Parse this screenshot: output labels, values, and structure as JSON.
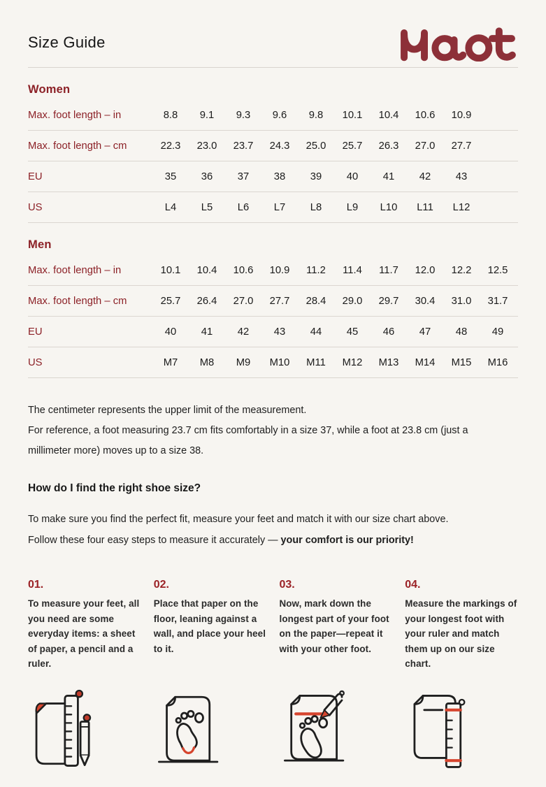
{
  "header": {
    "title": "Size Guide",
    "brand": "Naot"
  },
  "tables": [
    {
      "section": "Women",
      "rows": [
        {
          "label": "Max. foot length – in",
          "values": [
            "8.8",
            "9.1",
            "9.3",
            "9.6",
            "9.8",
            "10.1",
            "10.4",
            "10.6",
            "10.9"
          ]
        },
        {
          "label": "Max. foot length – cm",
          "values": [
            "22.3",
            "23.0",
            "23.7",
            "24.3",
            "25.0",
            "25.7",
            "26.3",
            "27.0",
            "27.7"
          ]
        },
        {
          "label": "EU",
          "values": [
            "35",
            "36",
            "37",
            "38",
            "39",
            "40",
            "41",
            "42",
            "43"
          ]
        },
        {
          "label": "US",
          "values": [
            "L4",
            "L5",
            "L6",
            "L7",
            "L8",
            "L9",
            "L10",
            "L11",
            "L12"
          ]
        }
      ]
    },
    {
      "section": "Men",
      "rows": [
        {
          "label": "Max. foot length – in",
          "values": [
            "10.1",
            "10.4",
            "10.6",
            "10.9",
            "11.2",
            "11.4",
            "11.7",
            "12.0",
            "12.2",
            "12.5"
          ]
        },
        {
          "label": "Max. foot length – cm",
          "values": [
            "25.7",
            "26.4",
            "27.0",
            "27.7",
            "28.4",
            "29.0",
            "29.7",
            "30.4",
            "31.0",
            "31.7"
          ]
        },
        {
          "label": "EU",
          "values": [
            "40",
            "41",
            "42",
            "43",
            "44",
            "45",
            "46",
            "47",
            "48",
            "49"
          ]
        },
        {
          "label": "US",
          "values": [
            "M7",
            "M8",
            "M9",
            "M10",
            "M11",
            "M12",
            "M13",
            "M14",
            "M15",
            "M16"
          ]
        }
      ]
    }
  ],
  "notes": {
    "line1": "The centimeter represents the upper limit of the measurement.",
    "line2": "For reference, a foot measuring 23.7 cm fits comfortably in a size 37, while a foot at 23.8 cm (just a millimeter more) moves up to a size 38."
  },
  "howto": {
    "heading": "How do I find the right shoe size?",
    "intro_regular": "To make sure you find the perfect fit, measure your feet and match it with our size chart above. Follow these four easy steps to measure it accurately — ",
    "intro_bold": "your comfort is our priority!"
  },
  "steps": [
    {
      "num": "01.",
      "text": "To measure your feet, all you need are some everyday items: a sheet of paper, a pencil and a ruler."
    },
    {
      "num": "02.",
      "text": "Place that paper on the floor, leaning against a wall, and place your heel to it."
    },
    {
      "num": "03.",
      "text": "Now, mark down the longest part of your foot on the paper—repeat it with your other foot."
    },
    {
      "num": "04.",
      "text": "Measure the markings of your longest foot with your ruler and match them up on our size chart."
    }
  ],
  "icons": [
    {
      "name": "paper-ruler-pencil-icon"
    },
    {
      "name": "paper-footprint-heel-icon"
    },
    {
      "name": "footprint-pencil-mark-icon"
    },
    {
      "name": "paper-ruler-measure-icon"
    }
  ],
  "colors": {
    "background": "#f7f5f1",
    "maroon": "#8c2127",
    "logo_maroon": "#8d3038",
    "accent_red": "#d6452e",
    "divider": "#dbd6d0"
  }
}
